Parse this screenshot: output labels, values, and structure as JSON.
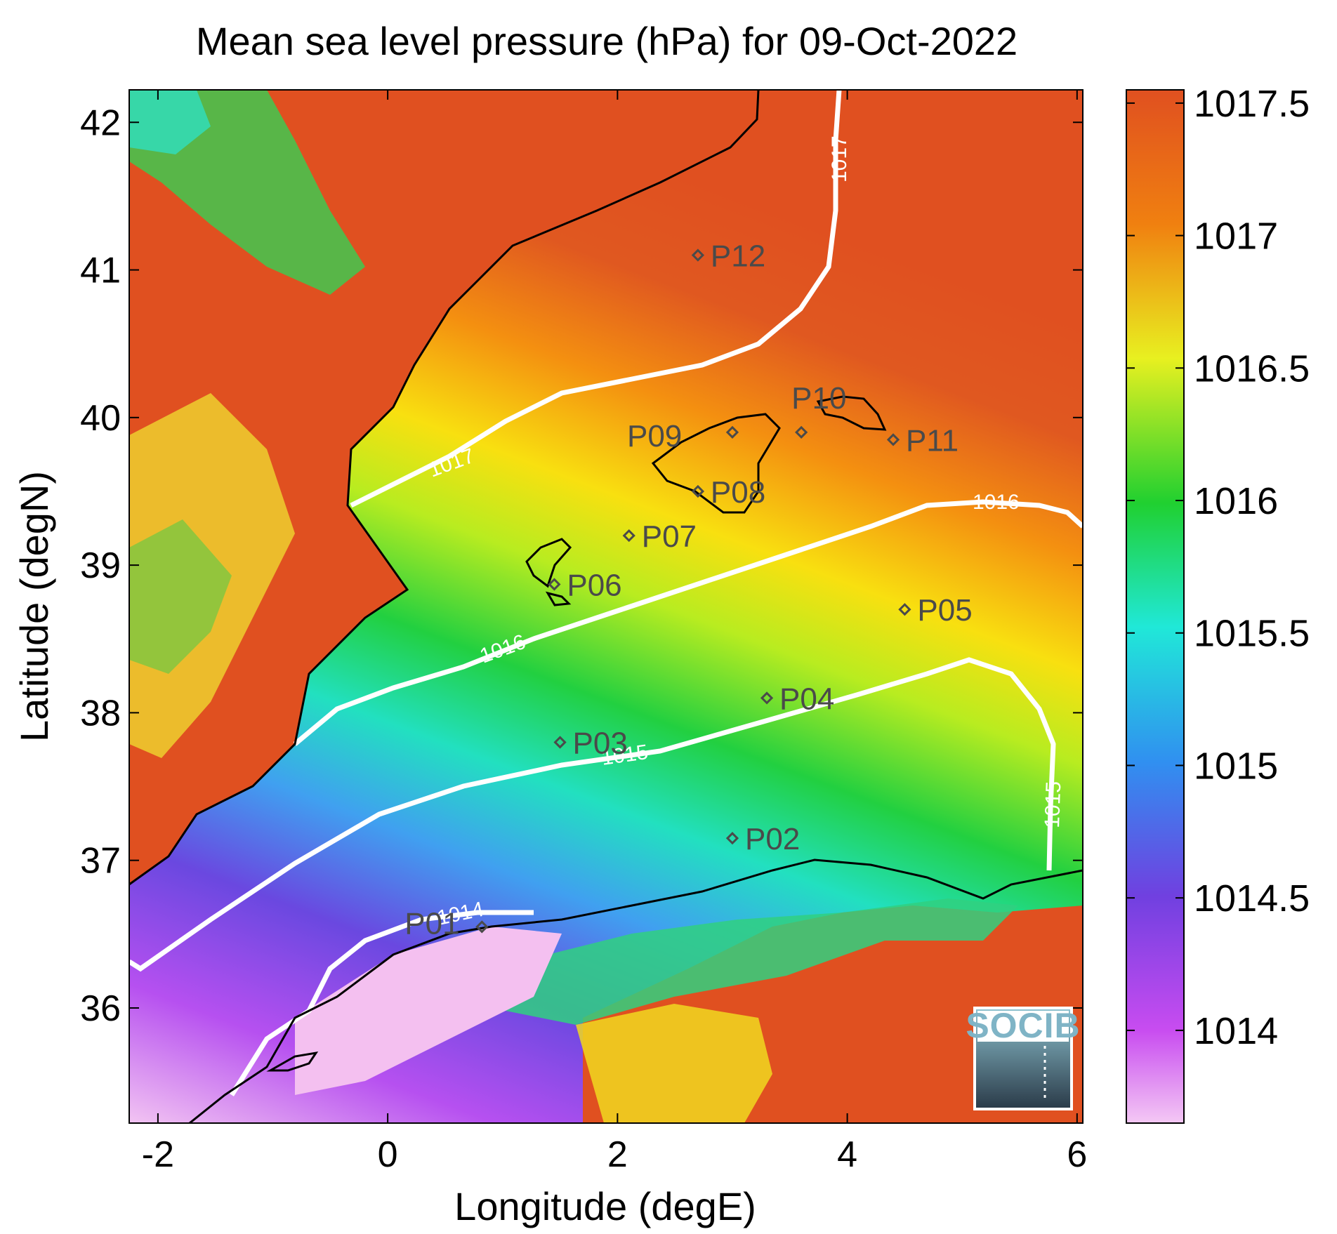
{
  "title": "Mean sea level pressure (hPa) for 09-Oct-2022",
  "x_axis": {
    "label": "Longitude (degE)",
    "ticks": [
      "-2",
      "0",
      "2",
      "4",
      "6"
    ],
    "tick_values": [
      -2,
      0,
      2,
      4,
      6
    ],
    "range": [
      -2.25,
      6.05
    ]
  },
  "y_axis": {
    "label": "Latitude (degN)",
    "ticks": [
      "36",
      "37",
      "38",
      "39",
      "40",
      "41",
      "42"
    ],
    "tick_values": [
      36,
      37,
      38,
      39,
      40,
      41,
      42
    ],
    "range": [
      35.22,
      42.22
    ]
  },
  "colorbar": {
    "ticks": [
      "1014",
      "1014.5",
      "1015",
      "1015.5",
      "1016",
      "1016.5",
      "1017",
      "1017.5"
    ],
    "tick_values": [
      1014,
      1014.5,
      1015,
      1015.5,
      1016,
      1016.5,
      1017,
      1017.5
    ],
    "range": [
      1013.65,
      1017.55
    ],
    "colors": [
      "#f4c8f4",
      "#c84cf0",
      "#7040e0",
      "#3090f0",
      "#20e8d8",
      "#20d030",
      "#e8f020",
      "#f08010",
      "#e05020"
    ]
  },
  "stations": [
    {
      "id": "P01",
      "lon": 0.82,
      "lat": 36.55
    },
    {
      "id": "P02",
      "lon": 3.0,
      "lat": 37.15
    },
    {
      "id": "P03",
      "lon": 1.5,
      "lat": 37.8
    },
    {
      "id": "P04",
      "lon": 3.3,
      "lat": 38.1
    },
    {
      "id": "P05",
      "lon": 4.5,
      "lat": 38.7
    },
    {
      "id": "P06",
      "lon": 1.45,
      "lat": 38.87
    },
    {
      "id": "P07",
      "lon": 2.1,
      "lat": 39.2
    },
    {
      "id": "P08",
      "lon": 2.7,
      "lat": 39.5
    },
    {
      "id": "P09",
      "lon": 3.0,
      "lat": 39.9
    },
    {
      "id": "P10",
      "lon": 3.6,
      "lat": 39.9
    },
    {
      "id": "P11",
      "lon": 4.4,
      "lat": 39.85
    },
    {
      "id": "P12",
      "lon": 2.7,
      "lat": 41.1
    }
  ],
  "contour_labels": [
    "1014",
    "1015",
    "1015",
    "1016",
    "1016",
    "1017",
    "1017"
  ],
  "logo": {
    "text": "SOCIB"
  }
}
